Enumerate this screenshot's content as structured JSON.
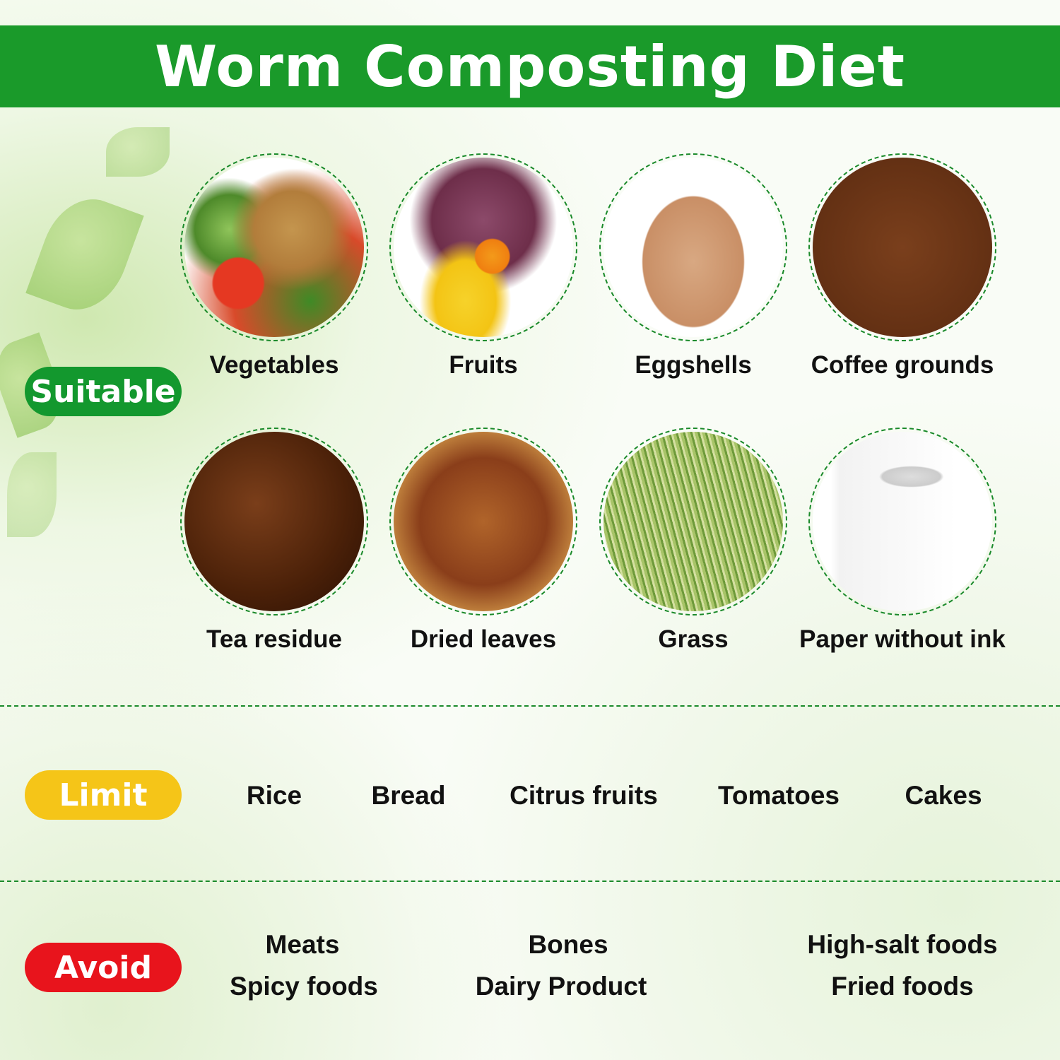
{
  "title": "Worm Composting Diet",
  "colors": {
    "header": "#1a9a2a",
    "suitable": "#13982e",
    "limit": "#f5c518",
    "avoid": "#e8141c"
  },
  "suitable": {
    "badge": "Suitable",
    "items": [
      {
        "label": "Vegetables",
        "image": "vegetable-basket"
      },
      {
        "label": "Fruits",
        "image": "fruit-pile"
      },
      {
        "label": "Eggshells",
        "image": "eggshell"
      },
      {
        "label": "Coffee grounds",
        "image": "coffee-grounds"
      },
      {
        "label": "Tea residue",
        "image": "tea-leaves"
      },
      {
        "label": "Dried leaves",
        "image": "dried-leaves"
      },
      {
        "label": "Grass",
        "image": "grass"
      },
      {
        "label": "Paper without ink",
        "image": "toilet-paper-roll"
      }
    ]
  },
  "limit": {
    "badge": "Limit",
    "items": [
      "Rice",
      "Bread",
      "Citrus fruits",
      "Tomatoes",
      "Cakes"
    ]
  },
  "avoid": {
    "badge": "Avoid",
    "items": [
      "Meats",
      "Spicy foods",
      "Bones",
      "Dairy Product",
      "High-salt foods",
      "Fried foods"
    ]
  }
}
